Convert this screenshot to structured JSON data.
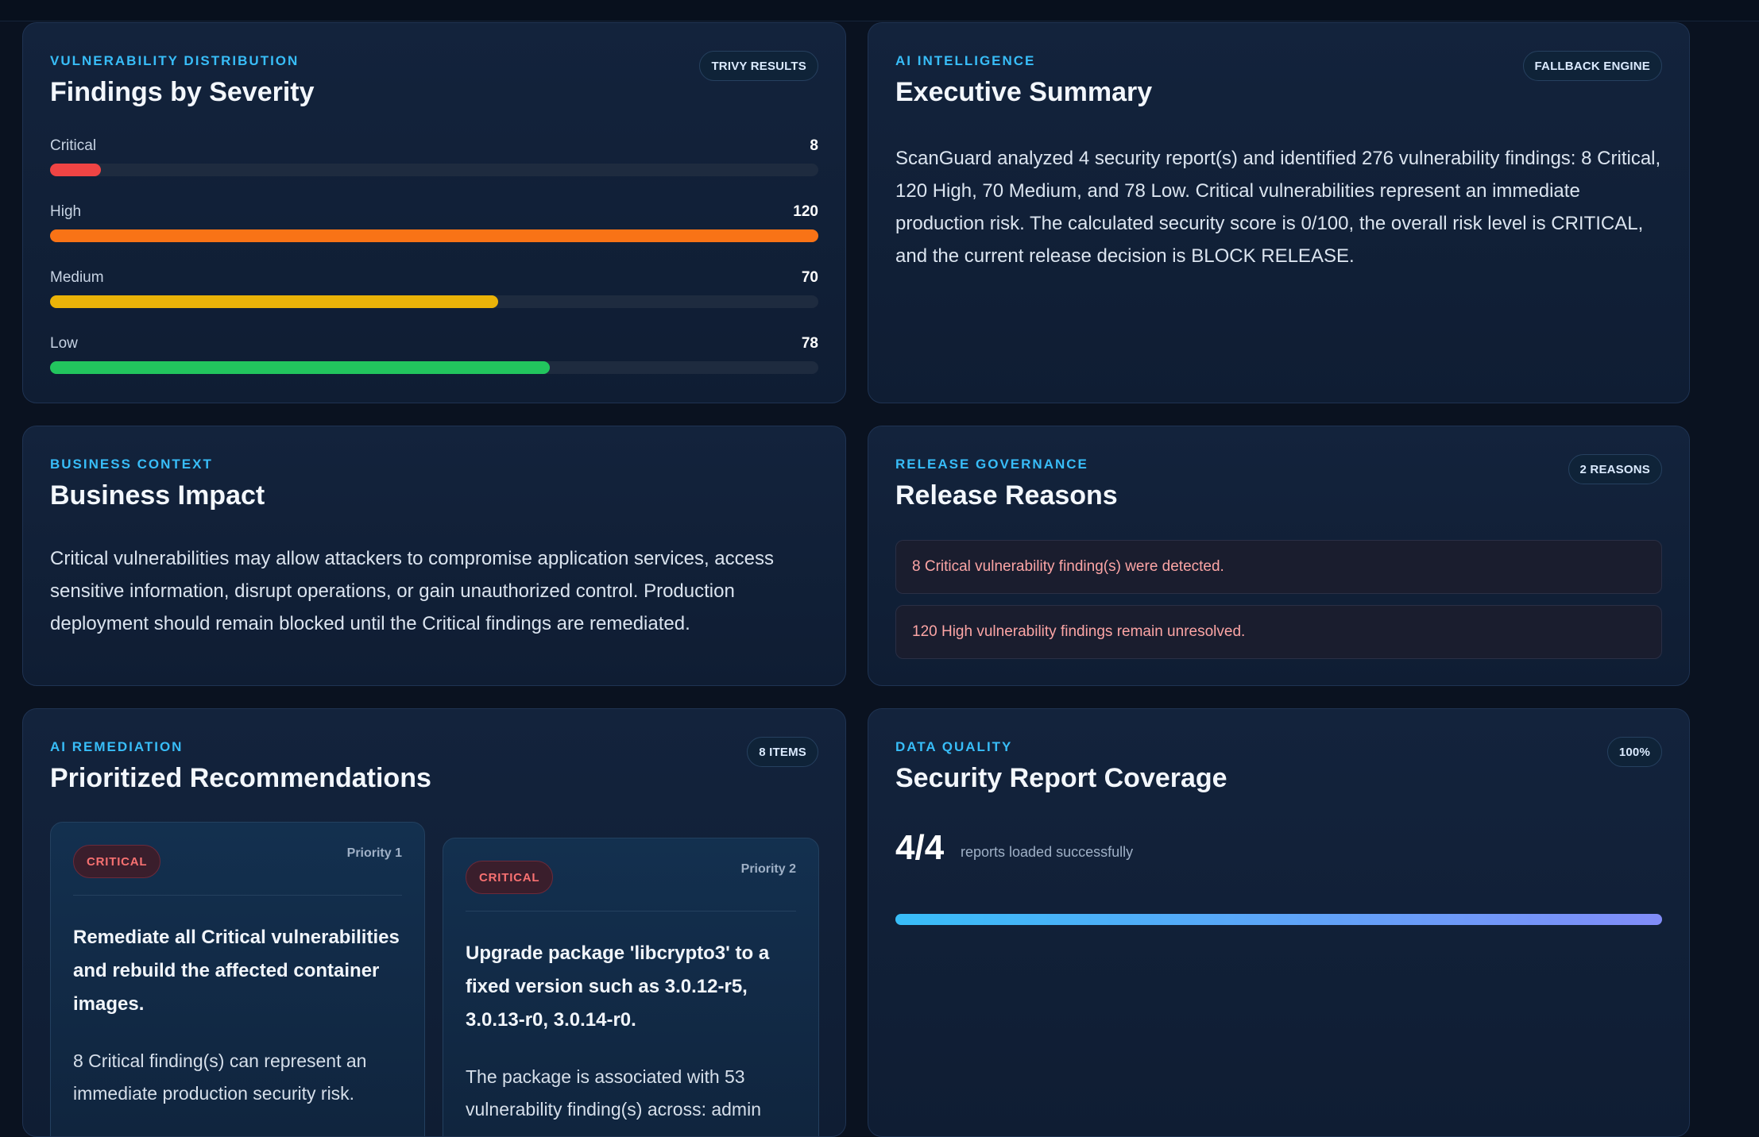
{
  "severity": {
    "eyebrow": "VULNERABILITY DISTRIBUTION",
    "title": "Findings by Severity",
    "badge": "TRIVY RESULTS",
    "max": 120,
    "rows": [
      {
        "label": "Critical",
        "count": 8,
        "color": "#ef4444"
      },
      {
        "label": "High",
        "count": 120,
        "color": "#f97316"
      },
      {
        "label": "Medium",
        "count": 70,
        "color": "#eab308"
      },
      {
        "label": "Low",
        "count": 78,
        "color": "#22c55e"
      }
    ]
  },
  "summary": {
    "eyebrow": "AI INTELLIGENCE",
    "title": "Executive Summary",
    "badge": "FALLBACK ENGINE",
    "text": "ScanGuard analyzed 4 security report(s) and identified 276 vulnerability findings: 8 Critical, 120 High, 70 Medium, and 78 Low. Critical vulnerabilities represent an immediate production risk. The calculated security score is 0/100, the overall risk level is CRITICAL, and the current release decision is BLOCK RELEASE."
  },
  "business": {
    "eyebrow": "BUSINESS CONTEXT",
    "title": "Business Impact",
    "text": "Critical vulnerabilities may allow attackers to compromise application services, access sensitive information, disrupt operations, or gain unauthorized control. Production deployment should remain blocked until the Critical findings are remediated."
  },
  "release": {
    "eyebrow": "RELEASE GOVERNANCE",
    "title": "Release Reasons",
    "badge": "2 REASONS",
    "reasons": [
      "8 Critical vulnerability finding(s) were detected.",
      "120 High vulnerability findings remain unresolved."
    ]
  },
  "recommendations": {
    "eyebrow": "AI REMEDIATION",
    "title": "Prioritized Recommendations",
    "badge": "8 ITEMS",
    "items": [
      {
        "severity": "CRITICAL",
        "priority": "Priority 1",
        "title": "Remediate all Critical vulnerabilities and rebuild the affected container images.",
        "text": "8 Critical finding(s) can represent an immediate production security risk."
      },
      {
        "severity": "CRITICAL",
        "priority": "Priority 2",
        "title": "Upgrade package 'libcrypto3' to a fixed version such as 3.0.12-r5, 3.0.13-r0, 3.0.14-r0.",
        "text": "The package is associated with 53 vulnerability finding(s) across: admin"
      }
    ]
  },
  "coverage": {
    "eyebrow": "DATA QUALITY",
    "title": "Security Report Coverage",
    "badge": "100%",
    "value": "4/4",
    "subtext": "reports loaded successfully",
    "fraction": 1.0
  }
}
